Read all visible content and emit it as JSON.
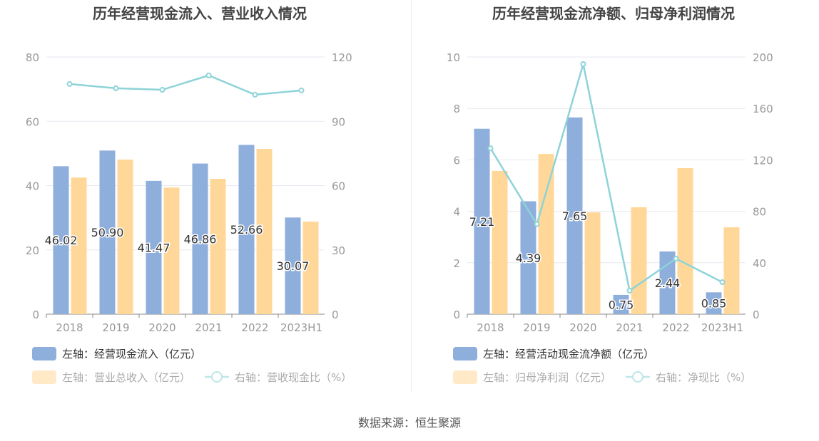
{
  "footer": "数据来源：恒生聚源",
  "colors": {
    "bar1": "#8eaedc",
    "bar2": "#ffd899",
    "line": "#8dd3d8",
    "grid": "#e6e9f0",
    "axis": "#999",
    "title": "#444"
  },
  "chart_data": [
    {
      "type": "bar",
      "title": "历年经营现金流入、营业收入情况",
      "categories": [
        "2018",
        "2019",
        "2020",
        "2021",
        "2022",
        "2023H1"
      ],
      "left_ylim": [
        0,
        80
      ],
      "left_ticks": [
        "0",
        "20",
        "40",
        "60",
        "80"
      ],
      "right_ylim": [
        0,
        120
      ],
      "right_ticks": [
        "0",
        "30",
        "60",
        "90",
        "120"
      ],
      "series": [
        {
          "name": "左轴：经营现金流入（亿元）",
          "axis": "left",
          "kind": "bar",
          "values": [
            46.02,
            50.9,
            41.47,
            46.86,
            52.66,
            30.07
          ],
          "labels": [
            "46.02",
            "50.90",
            "41.47",
            "46.86",
            "52.66",
            "30.07"
          ]
        },
        {
          "name": "左轴：营业总收入（亿元）",
          "axis": "left",
          "kind": "bar",
          "values": [
            42.5,
            48.1,
            39.4,
            42.1,
            51.4,
            28.8
          ]
        },
        {
          "name": "右轴：营收现金比（%）",
          "axis": "right",
          "kind": "line",
          "values": [
            107.4,
            105.4,
            104.7,
            111.4,
            102.4,
            104.4
          ]
        }
      ]
    },
    {
      "type": "bar",
      "title": "历年经营现金流净额、归母净利润情况",
      "categories": [
        "2018",
        "2019",
        "2020",
        "2021",
        "2022",
        "2023H1"
      ],
      "left_ylim": [
        0,
        10
      ],
      "left_ticks": [
        "0",
        "2",
        "4",
        "6",
        "8",
        "10"
      ],
      "right_ylim": [
        0,
        200
      ],
      "right_ticks": [
        "0",
        "40",
        "80",
        "120",
        "160",
        "200"
      ],
      "series": [
        {
          "name": "左轴：经营活动现金流净额（亿元）",
          "axis": "left",
          "kind": "bar",
          "values": [
            7.21,
            4.39,
            7.65,
            0.75,
            2.44,
            0.85
          ],
          "labels": [
            "7.21",
            "4.39",
            "7.65",
            "0.75",
            "2.44",
            "0.85"
          ]
        },
        {
          "name": "左轴：归母净利润（亿元）",
          "axis": "left",
          "kind": "bar",
          "values": [
            5.57,
            6.23,
            3.96,
            4.16,
            5.68,
            3.38
          ]
        },
        {
          "name": "右轴：净现比（%）",
          "axis": "right",
          "kind": "line",
          "values": [
            129,
            70,
            194.5,
            18.3,
            43.2,
            24.9
          ]
        }
      ]
    }
  ]
}
